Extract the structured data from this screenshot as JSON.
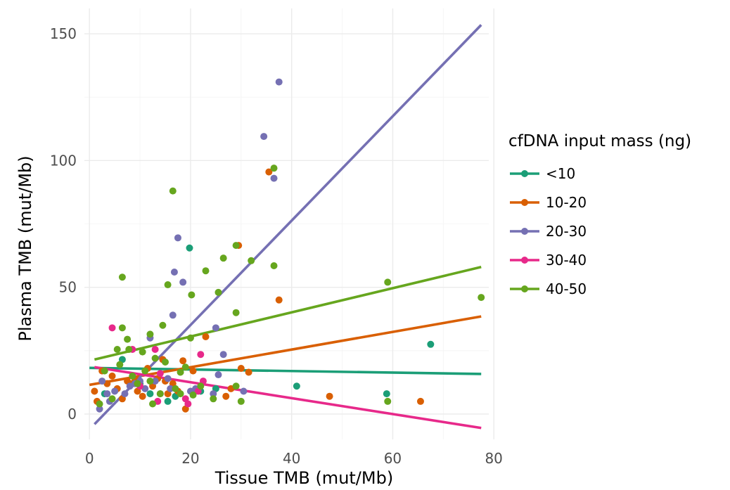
{
  "chart_data": {
    "type": "scatter",
    "xlabel": "Tissue TMB (mut/Mb)",
    "ylabel": "Plasma TMB (mut/Mb)",
    "xlim": [
      -1,
      79
    ],
    "ylim": [
      -10,
      160
    ],
    "x_ticks": [
      0,
      20,
      40,
      60,
      80
    ],
    "y_ticks": [
      0,
      50,
      100,
      150
    ],
    "grid": true,
    "legend": {
      "title": "cfDNA input mass (ng)",
      "position": "right"
    },
    "series": [
      {
        "name": "<10",
        "color": "#1b9e77",
        "points": [
          [
            6.5,
            21.5
          ],
          [
            19.8,
            65.5
          ],
          [
            41,
            11
          ],
          [
            58.8,
            8
          ],
          [
            67.5,
            27.5
          ],
          [
            15.5,
            5
          ],
          [
            25,
            10
          ],
          [
            10,
            12
          ],
          [
            3,
            8
          ],
          [
            22,
            9
          ],
          [
            12,
            8
          ],
          [
            17,
            7
          ]
        ],
        "fit": [
          [
            0,
            18.2
          ],
          [
            77.5,
            15.8
          ]
        ]
      },
      {
        "name": "10-20",
        "color": "#d95f02",
        "points": [
          [
            1,
            9
          ],
          [
            1.5,
            5
          ],
          [
            2.5,
            17
          ],
          [
            3.5,
            12
          ],
          [
            4.5,
            15
          ],
          [
            5.5,
            10
          ],
          [
            6.5,
            6
          ],
          [
            7.5,
            13
          ],
          [
            8.5,
            12
          ],
          [
            9.5,
            9
          ],
          [
            10.5,
            7
          ],
          [
            11.5,
            18
          ],
          [
            12.5,
            11
          ],
          [
            13.5,
            14
          ],
          [
            14.5,
            21.5
          ],
          [
            15.5,
            8
          ],
          [
            16.5,
            12
          ],
          [
            17.5,
            9
          ],
          [
            18.5,
            21
          ],
          [
            19,
            2
          ],
          [
            20.5,
            17
          ],
          [
            23,
            30.5
          ],
          [
            27,
            7
          ],
          [
            29.5,
            66.5
          ],
          [
            30,
            18
          ],
          [
            31.5,
            16.5
          ],
          [
            35.5,
            95.5
          ],
          [
            37.5,
            45
          ],
          [
            47.5,
            7
          ],
          [
            65.5,
            5
          ],
          [
            28,
            10
          ],
          [
            15,
            13
          ],
          [
            9,
            14
          ]
        ],
        "fit": [
          [
            0,
            11.5
          ],
          [
            77.5,
            38.5
          ]
        ]
      },
      {
        "name": "20-30",
        "color": "#7570b3",
        "points": [
          [
            2,
            2
          ],
          [
            2.5,
            13
          ],
          [
            3.5,
            8
          ],
          [
            4,
            5
          ],
          [
            5,
            9
          ],
          [
            7,
            8
          ],
          [
            8,
            11
          ],
          [
            9,
            12
          ],
          [
            10,
            13
          ],
          [
            11,
            10
          ],
          [
            12,
            30
          ],
          [
            13,
            13
          ],
          [
            14,
            8
          ],
          [
            16,
            10
          ],
          [
            16.5,
            39
          ],
          [
            16.8,
            56
          ],
          [
            17.5,
            69.5
          ],
          [
            18.5,
            52
          ],
          [
            20,
            9
          ],
          [
            24.5,
            8
          ],
          [
            25,
            34
          ],
          [
            25.5,
            15.5
          ],
          [
            26.5,
            23.5
          ],
          [
            30.5,
            9
          ],
          [
            34.5,
            109.5
          ],
          [
            36.5,
            93
          ],
          [
            37.5,
            131
          ],
          [
            15.5,
            14
          ],
          [
            21,
            10
          ]
        ],
        "fit": [
          [
            1,
            -4
          ],
          [
            77.5,
            153.5
          ]
        ]
      },
      {
        "name": "30-40",
        "color": "#e7298a",
        "points": [
          [
            4.5,
            34
          ],
          [
            8.5,
            25.5
          ],
          [
            13,
            25.5
          ],
          [
            13.5,
            5
          ],
          [
            19,
            6
          ],
          [
            19.5,
            4
          ],
          [
            22,
            23.5
          ],
          [
            22.5,
            13
          ],
          [
            21.5,
            9
          ],
          [
            14,
            16
          ],
          [
            10,
            11
          ]
        ],
        "fit": [
          [
            1,
            18.5
          ],
          [
            77.5,
            -5.5
          ]
        ]
      },
      {
        "name": "40-50",
        "color": "#66a61e",
        "points": [
          [
            2,
            4
          ],
          [
            3,
            17
          ],
          [
            4.5,
            6
          ],
          [
            5.5,
            25.5
          ],
          [
            6,
            19.5
          ],
          [
            6.5,
            54
          ],
          [
            6.5,
            34
          ],
          [
            7.5,
            29.5
          ],
          [
            7.8,
            25.5
          ],
          [
            8.5,
            15
          ],
          [
            9.5,
            12
          ],
          [
            10.5,
            24.5
          ],
          [
            12,
            31.5
          ],
          [
            12.5,
            4
          ],
          [
            13,
            22
          ],
          [
            14,
            8
          ],
          [
            14.5,
            35
          ],
          [
            15,
            20.5
          ],
          [
            15.5,
            51
          ],
          [
            16.5,
            88
          ],
          [
            17,
            10
          ],
          [
            18,
            16.5
          ],
          [
            19,
            18.5
          ],
          [
            20,
            30
          ],
          [
            20.2,
            47
          ],
          [
            20.5,
            7.5
          ],
          [
            23,
            56.5
          ],
          [
            24.5,
            6
          ],
          [
            25.5,
            48
          ],
          [
            26.5,
            61.5
          ],
          [
            29,
            40
          ],
          [
            29,
            11
          ],
          [
            29,
            66.5
          ],
          [
            30,
            5
          ],
          [
            32,
            60.5
          ],
          [
            36.5,
            97
          ],
          [
            36.5,
            58.5
          ],
          [
            59,
            52
          ],
          [
            59,
            5
          ],
          [
            77.5,
            46
          ],
          [
            11,
            17
          ],
          [
            12,
            13
          ],
          [
            18,
            8
          ],
          [
            22,
            11
          ]
        ],
        "fit": [
          [
            1,
            21.5
          ],
          [
            77.5,
            58
          ]
        ]
      }
    ]
  }
}
